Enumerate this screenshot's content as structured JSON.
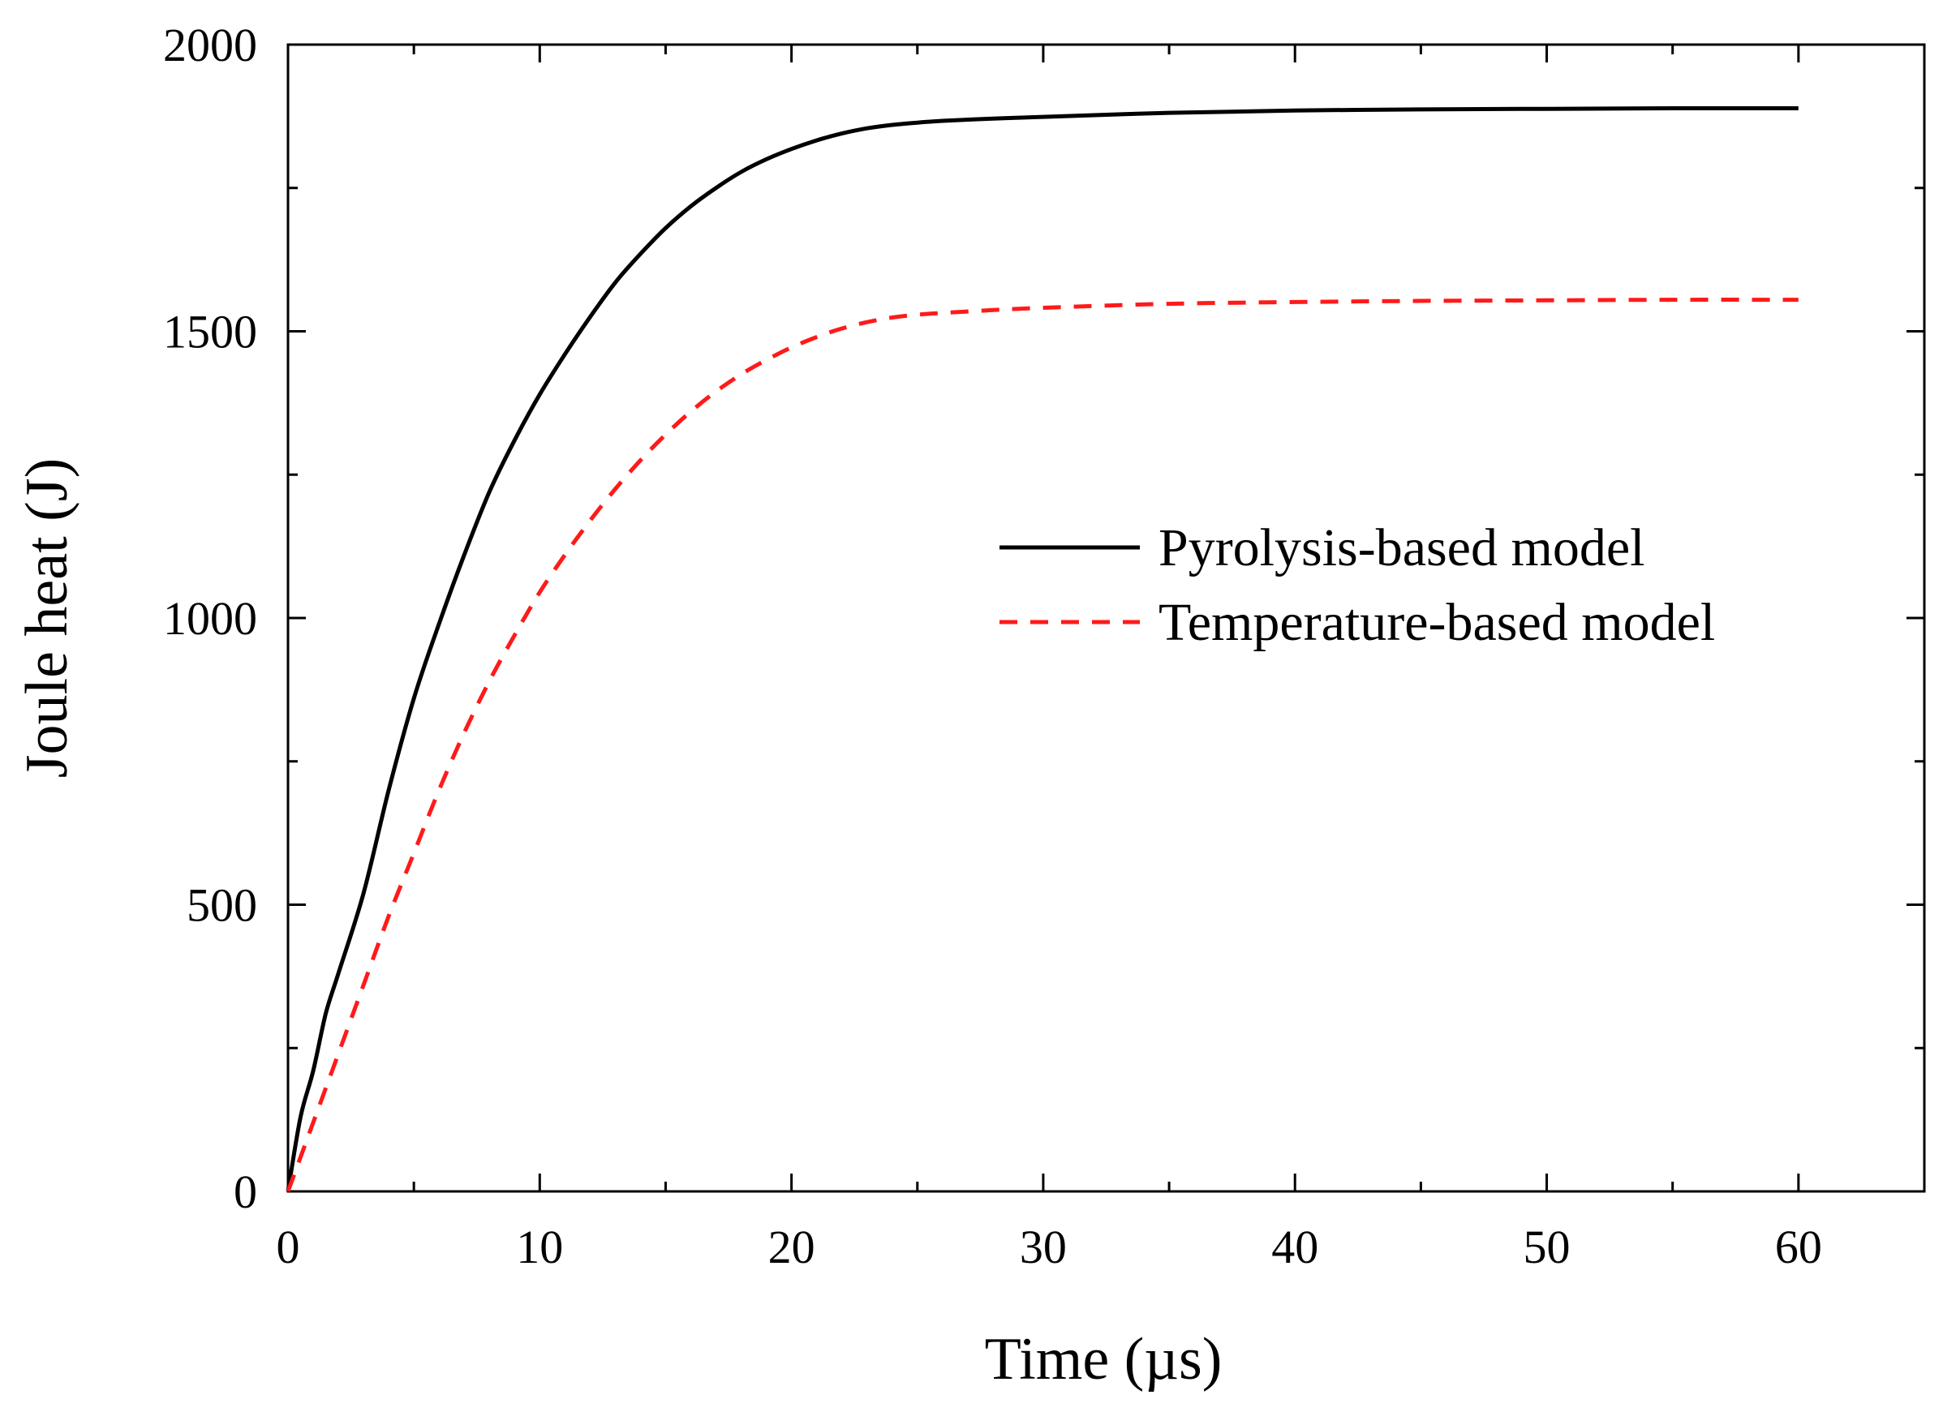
{
  "chart_data": {
    "type": "line",
    "title": "",
    "xlabel": "Time (µs)",
    "ylabel": "Joule heat (J)",
    "xlim": [
      0,
      65
    ],
    "ylim": [
      0,
      2000
    ],
    "x_ticks": [
      0,
      10,
      20,
      30,
      40,
      50,
      60
    ],
    "y_ticks": [
      0,
      500,
      1000,
      1500,
      2000
    ],
    "x_tick_labels": [
      "0",
      "10",
      "20",
      "30",
      "40",
      "50",
      "60"
    ],
    "y_tick_labels": [
      "0",
      "500",
      "1000",
      "1500",
      "2000"
    ],
    "x_minor_step": 5,
    "y_minor_step": 250,
    "grid": false,
    "legend_position": "center-right",
    "series": [
      {
        "name": "Pyrolysis-based model",
        "color": "#000000",
        "dash": "solid",
        "x": [
          0,
          0.5,
          1,
          1.5,
          2,
          3,
          4,
          5,
          6,
          7,
          8,
          9,
          10,
          11,
          12,
          13,
          14,
          15,
          16,
          17,
          18,
          19,
          20,
          21,
          22,
          23,
          24,
          25,
          26,
          28,
          30,
          35,
          40,
          45,
          50,
          55,
          60
        ],
        "values": [
          0,
          130,
          210,
          310,
          380,
          520,
          700,
          860,
          990,
          1110,
          1220,
          1310,
          1390,
          1460,
          1525,
          1585,
          1635,
          1680,
          1718,
          1750,
          1778,
          1800,
          1818,
          1833,
          1845,
          1854,
          1860,
          1864,
          1867,
          1871,
          1874,
          1881,
          1885,
          1887,
          1888,
          1889,
          1889
        ]
      },
      {
        "name": "Temperature-based model",
        "color": "#ff1a1a",
        "dash": "dashed",
        "x": [
          0,
          1,
          2,
          3,
          4,
          5,
          6,
          7,
          8,
          9,
          10,
          11,
          12,
          13,
          14,
          15,
          16,
          17,
          18,
          19,
          20,
          21,
          22,
          23,
          24,
          25,
          26,
          28,
          30,
          35,
          40,
          45,
          50,
          55,
          60
        ],
        "values": [
          0,
          120,
          240,
          360,
          480,
          590,
          700,
          800,
          890,
          970,
          1045,
          1110,
          1170,
          1225,
          1275,
          1320,
          1360,
          1395,
          1425,
          1450,
          1472,
          1490,
          1505,
          1516,
          1524,
          1529,
          1532,
          1537,
          1541,
          1548,
          1551,
          1553,
          1554,
          1555,
          1555
        ]
      }
    ]
  }
}
